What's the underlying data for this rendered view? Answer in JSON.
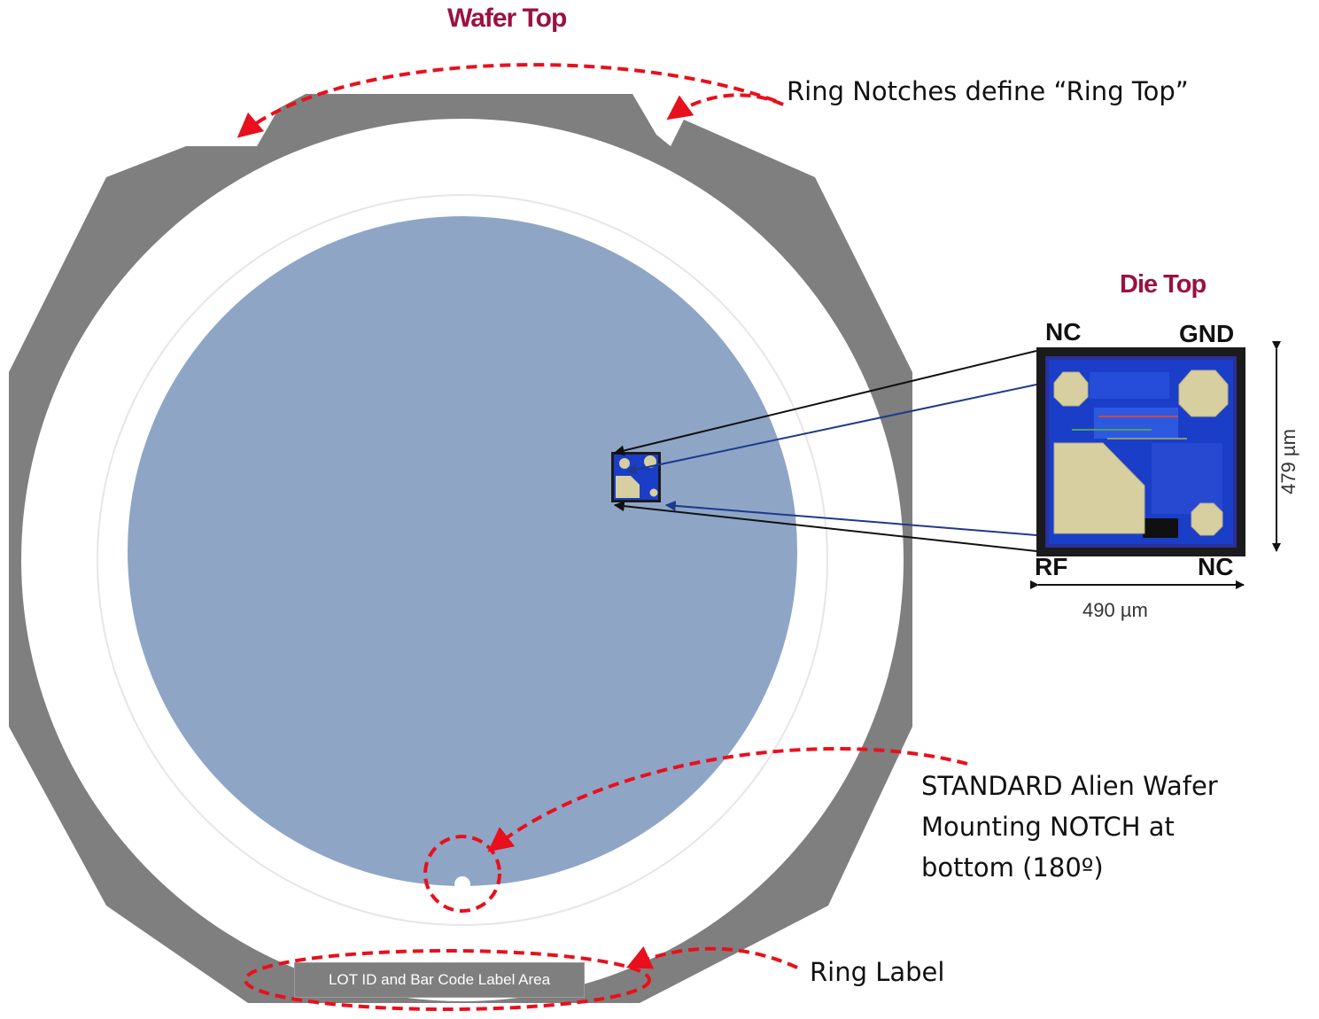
{
  "labels": {
    "wafer_top": "Wafer Top",
    "ring_notches": "Ring Notches define “Ring Top”",
    "die_top": "Die Top",
    "notch_line1": "STANDARD Alien Wafer",
    "notch_line2": "Mounting NOTCH at",
    "notch_line3": "bottom (180º)",
    "ring_label": "Ring Label",
    "lot_area": "LOT ID and Bar Code Label Area"
  },
  "die": {
    "pins": {
      "top_left": "NC",
      "top_right": "GND",
      "bottom_left": "RF",
      "bottom_right": "NC"
    },
    "width": "490 µm",
    "height": "479 µm"
  },
  "colors": {
    "frame": "#7f7f7f",
    "wafer": "#8ea5c6",
    "callout_red": "#e8101c",
    "title_maroon": "#9b1140",
    "die_blue": "#1a3ec8",
    "pad_tan": "#d8cfa0",
    "arrow_navy": "#1f3a8a"
  }
}
